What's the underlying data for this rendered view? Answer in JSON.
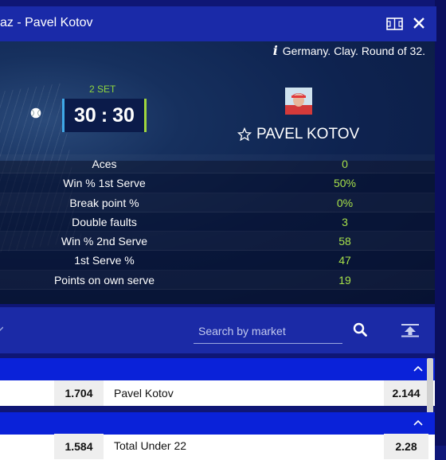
{
  "header": {
    "title": "az - Pavel Kotov"
  },
  "match": {
    "info": "Germany. Clay. Round of 32.",
    "set_label": "2 SET",
    "score_left": "30",
    "score_sep": ":",
    "score_right": "30",
    "player_name": "PAVEL KOTOV"
  },
  "stats": [
    {
      "label": "Aces",
      "value": "0"
    },
    {
      "label": "Win % 1st Serve",
      "value": "50%"
    },
    {
      "label": "Break point %",
      "value": "0%"
    },
    {
      "label": "Double faults",
      "value": "3"
    },
    {
      "label": "Win % 2nd Serve",
      "value": "58"
    },
    {
      "label": "1st Serve %",
      "value": "47"
    },
    {
      "label": "Points on own serve",
      "value": "19"
    }
  ],
  "search": {
    "placeholder": "Search by market"
  },
  "markets": [
    {
      "left_odd": "1.704",
      "name": "Pavel Kotov",
      "right_odd": "2.144"
    },
    {
      "left_odd": "1.584",
      "name": "Total Under 22",
      "right_odd": "2.28"
    }
  ],
  "colors": {
    "accent_green": "#a6e04a",
    "group_header": "#0a22d9",
    "header_bg": "#1a2aa8"
  },
  "icons": [
    "field-icon",
    "close-icon",
    "info-icon",
    "tennis-ball-icon",
    "star-icon",
    "search-icon",
    "upload-icon",
    "chevron-up-icon",
    "chevron-left-icon"
  ]
}
